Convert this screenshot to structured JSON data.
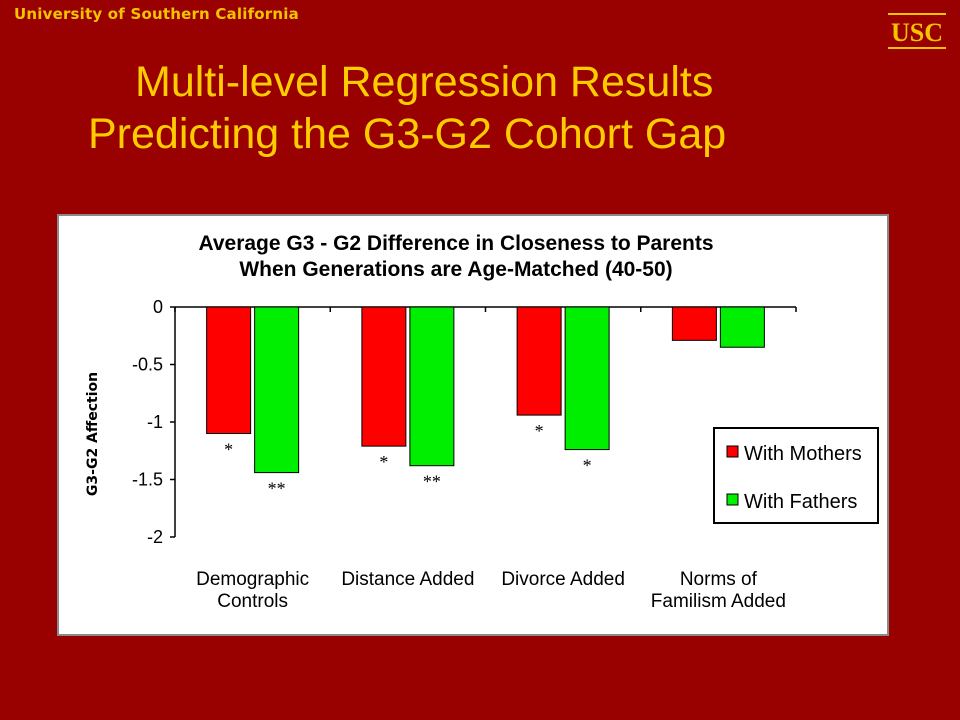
{
  "header": {
    "university_name": "University of Southern California",
    "logo_text": "USC"
  },
  "slide": {
    "title_line1": "Multi-level Regression Results",
    "title_line2": "Predicting the G3-G2 Cohort Gap"
  },
  "colors": {
    "background": "#990000",
    "title": "#ffcc00",
    "mothers": "#ff0000",
    "fathers": "#00ee00"
  },
  "chart_data": {
    "type": "bar",
    "title": "Average G3 - G2 Difference in Closeness to Parents",
    "subtitle": "When Generations are Age-Matched (40-50)",
    "ylabel": "G3-G2 Affection",
    "xlabel": "",
    "ylim": [
      -2,
      0
    ],
    "yticks": [
      "0",
      "-0.5",
      "-1",
      "-1.5",
      "-2"
    ],
    "ytick_values": [
      0,
      -0.5,
      -1,
      -1.5,
      -2
    ],
    "categories": [
      [
        "Demographic",
        "Controls"
      ],
      [
        "Distance Added"
      ],
      [
        "Divorce Added"
      ],
      [
        "Norms of",
        "Familism Added"
      ]
    ],
    "series": [
      {
        "name": "With Mothers",
        "color": "#ff0000",
        "values": [
          -1.1,
          -1.21,
          -0.94,
          -0.29
        ],
        "significance": [
          "*",
          "*",
          "*",
          ""
        ]
      },
      {
        "name": "With Fathers",
        "color": "#00ee00",
        "values": [
          -1.44,
          -1.38,
          -1.24,
          -0.35
        ],
        "significance": [
          "**",
          "**",
          "*",
          ""
        ]
      }
    ],
    "grid": false,
    "legend_position": "bottom-right"
  }
}
